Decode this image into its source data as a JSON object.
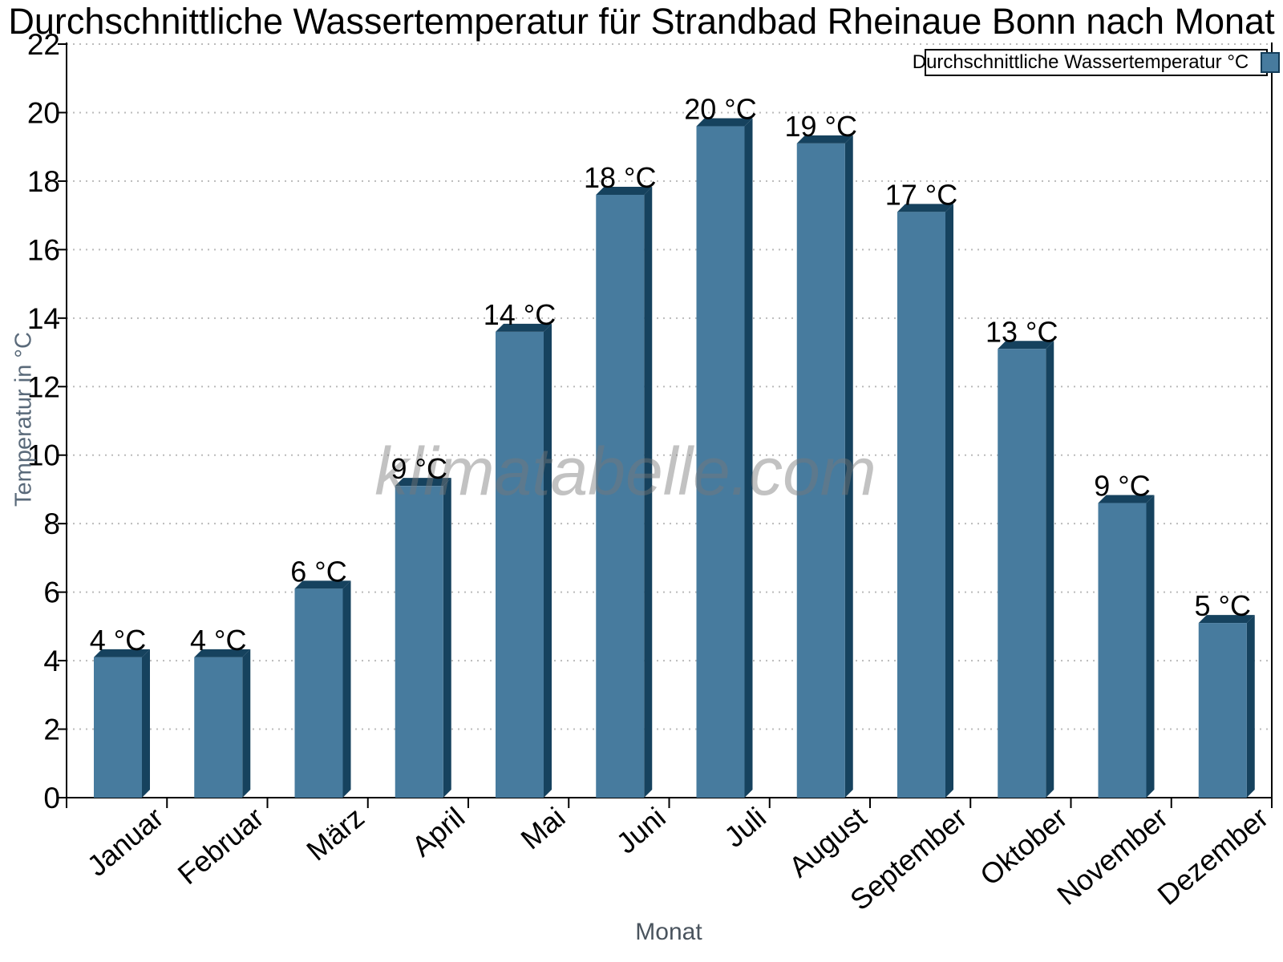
{
  "title": "Durchschnittliche Wassertemperatur für Strandbad Rheinaue Bonn nach Monat",
  "watermark": "klimatabelle.com",
  "legend": {
    "label": "Durchschnittliche Wassertemperatur °C",
    "swatch_color": "#477B9E",
    "swatch_border_color": "#133C58"
  },
  "axes": {
    "y_label": "Temperatur in °C",
    "x_label": "Monat"
  },
  "chart_data": {
    "type": "bar",
    "title": "Durchschnittliche Wassertemperatur für Strandbad Rheinaue Bonn nach Monat",
    "categories": [
      "Januar",
      "Februar",
      "März",
      "April",
      "Mai",
      "Juni",
      "Juli",
      "August",
      "September",
      "Oktober",
      "November",
      "Dezember"
    ],
    "values": [
      4.1,
      4.1,
      6.1,
      9.1,
      13.6,
      17.6,
      19.6,
      19.1,
      17.1,
      13.1,
      8.6,
      5.1
    ],
    "bar_labels": [
      "4 °C",
      "4 °C",
      "6 °C",
      "9 °C",
      "14 °C",
      "18 °C",
      "20 °C",
      "19 °C",
      "17 °C",
      "13 °C",
      "9 °C",
      "5 °C"
    ],
    "xlabel": "Monat",
    "ylabel": "Temperatur in °C",
    "ylim": [
      0,
      22
    ],
    "ytick_step": 2,
    "grid": "horizontal-dotted",
    "grid_color": "#BBBBBB",
    "legend_entries": [
      "Durchschnittliche Wassertemperatur °C"
    ],
    "legend_position": "top-right",
    "bar_color": "#477B9E",
    "bar_shadow_color": "#16425E",
    "axis_color": "#000000"
  }
}
